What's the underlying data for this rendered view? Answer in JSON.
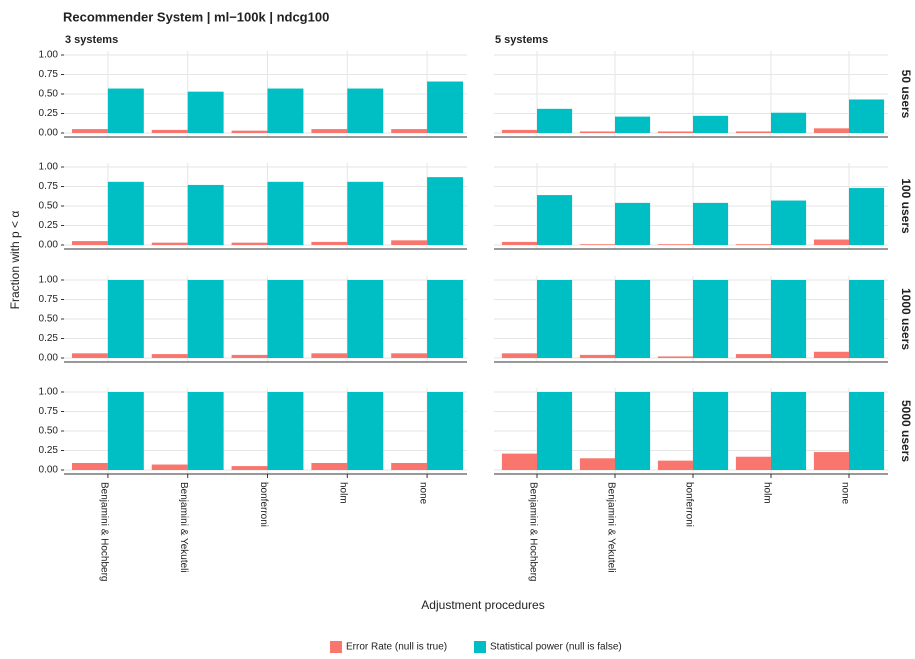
{
  "chart_data": {
    "type": "facet_bar",
    "title": "Recommender System | ml−100k | ndcg100",
    "x_label": "Adjustment procedures",
    "y_label": "Fraction with p < α",
    "facet_cols": [
      "3 systems",
      "5 systems"
    ],
    "facet_rows": [
      "50 users",
      "100 users",
      "1000 users",
      "5000 users"
    ],
    "categories": [
      "Benjamini & Hochberg",
      "Benjamini & Yekuteli",
      "bonferroni",
      "holm",
      "none"
    ],
    "series": [
      {
        "name": "Error Rate (null is true)",
        "color": "#F8766D"
      },
      {
        "name": "Statistical power (null is false)",
        "color": "#00BFC4"
      }
    ],
    "ylim": [
      0,
      1
    ],
    "yticks": [
      {
        "value": 0,
        "label": "0.00"
      },
      {
        "value": 0.25,
        "label": "0.25"
      },
      {
        "value": 0.5,
        "label": "0.50"
      },
      {
        "value": 0.75,
        "label": "0.75"
      },
      {
        "value": 1,
        "label": "1.00"
      }
    ],
    "grid": true,
    "panels": [
      [
        [
          [
            0.05,
            0.04,
            0.03,
            0.05,
            0.05
          ],
          [
            0.57,
            0.53,
            0.57,
            0.57,
            0.66
          ]
        ],
        [
          [
            0.04,
            0.02,
            0.02,
            0.02,
            0.06
          ],
          [
            0.31,
            0.21,
            0.22,
            0.26,
            0.43
          ]
        ]
      ],
      [
        [
          [
            0.05,
            0.03,
            0.03,
            0.04,
            0.06
          ],
          [
            0.81,
            0.77,
            0.81,
            0.81,
            0.87
          ]
        ],
        [
          [
            0.04,
            0.01,
            0.01,
            0.01,
            0.07
          ],
          [
            0.64,
            0.54,
            0.54,
            0.57,
            0.73
          ]
        ]
      ],
      [
        [
          [
            0.06,
            0.05,
            0.04,
            0.06,
            0.06
          ],
          [
            1,
            1,
            1,
            1,
            1
          ]
        ],
        [
          [
            0.06,
            0.04,
            0.02,
            0.05,
            0.08
          ],
          [
            1,
            1,
            1,
            1,
            1
          ]
        ]
      ],
      [
        [
          [
            0.09,
            0.07,
            0.05,
            0.09,
            0.09
          ],
          [
            1,
            1,
            1,
            1,
            1
          ]
        ],
        [
          [
            0.21,
            0.15,
            0.12,
            0.17,
            0.23
          ],
          [
            1,
            1,
            1,
            1,
            1
          ]
        ]
      ]
    ]
  }
}
